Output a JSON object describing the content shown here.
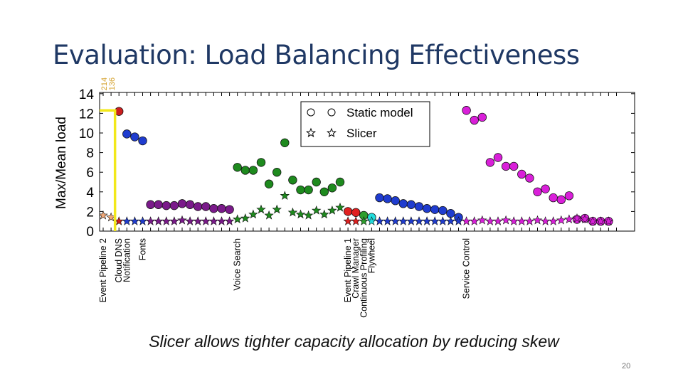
{
  "slide": {
    "title": "Evaluation: Load Balancing Effectiveness",
    "caption": "Slicer allows tighter capacity allocation by reducing skew",
    "page_number": "20"
  },
  "colors": {
    "title": "#1f3864",
    "highlight": "#f2e81a",
    "overflow_label": "#d4a02a",
    "axis": "#000000"
  },
  "chart_data": {
    "type": "scatter",
    "ylabel": "Max/Mean load",
    "ylim": [
      0,
      14
    ],
    "yticks": [
      0,
      2,
      4,
      6,
      8,
      10,
      12,
      14
    ],
    "xlim": [
      0,
      65
    ],
    "overflow_labels": [
      "214",
      "136"
    ],
    "highlight_line": {
      "x": 1.5,
      "y": 12.3
    },
    "legend": [
      {
        "marker": "circle",
        "label": "Static model"
      },
      {
        "marker": "star",
        "label": "Slicer"
      }
    ],
    "categories": [
      {
        "label": "Event Pipeline 2",
        "x": 0
      },
      {
        "label": "Cloud DNS",
        "x": 2
      },
      {
        "label": "Notification",
        "x": 3
      },
      {
        "label": "Fonts",
        "x": 5
      },
      {
        "label": "Voice Search",
        "x": 17
      },
      {
        "label": "Event Pipeline 1",
        "x": 31
      },
      {
        "label": "Crawl Manager",
        "x": 32
      },
      {
        "label": "Continuous Profiling",
        "x": 33
      },
      {
        "label": "Flywheel",
        "x": 34
      },
      {
        "label": "Service Control",
        "x": 46
      }
    ],
    "series": [
      {
        "name": "Event Pipeline 2",
        "color": "#f0a878",
        "static_x": [],
        "static_y": [],
        "slicer_x": [
          0,
          1
        ],
        "slicer_y": [
          1.6,
          1.4
        ]
      },
      {
        "name": "Cloud DNS",
        "color": "#cc1f1f",
        "static_x": [
          2
        ],
        "static_y": [
          12.2
        ],
        "slicer_x": [
          2
        ],
        "slicer_y": [
          1.0
        ]
      },
      {
        "name": "Notification",
        "color": "#1f3ccf",
        "static_x": [
          3,
          4,
          5
        ],
        "static_y": [
          9.9,
          9.6,
          9.2
        ],
        "slicer_x": [
          3,
          4,
          5
        ],
        "slicer_y": [
          1.0,
          1.0,
          1.0
        ]
      },
      {
        "name": "Fonts",
        "color": "#7a1a8a",
        "static_x": [
          6,
          7,
          8,
          9,
          10,
          11,
          12,
          13,
          14,
          15,
          16
        ],
        "static_y": [
          2.7,
          2.7,
          2.6,
          2.6,
          2.8,
          2.7,
          2.5,
          2.5,
          2.3,
          2.3,
          2.2
        ],
        "slicer_x": [
          6,
          7,
          8,
          9,
          10,
          11,
          12,
          13,
          14,
          15,
          16
        ],
        "slicer_y": [
          1.0,
          1.0,
          1.0,
          1.0,
          1.1,
          1.0,
          1.0,
          1.0,
          1.0,
          1.0,
          1.0
        ]
      },
      {
        "name": "Voice Search",
        "color": "#1e8a1e",
        "static_x": [
          17,
          18,
          19,
          20,
          21,
          22,
          23,
          24,
          25,
          26,
          27,
          28,
          29,
          30
        ],
        "static_y": [
          6.5,
          6.2,
          6.2,
          7.0,
          4.8,
          6.0,
          9.0,
          5.2,
          4.2,
          4.2,
          5.0,
          4.0,
          4.4,
          5.0
        ],
        "slicer_x": [
          17,
          18,
          19,
          20,
          21,
          22,
          23,
          24,
          25,
          26,
          27,
          28,
          29,
          30
        ],
        "slicer_y": [
          1.2,
          1.3,
          1.7,
          2.2,
          1.6,
          2.2,
          3.6,
          1.9,
          1.7,
          1.6,
          2.1,
          1.7,
          2.1,
          2.4
        ]
      },
      {
        "name": "Event Pipeline 1",
        "color": "#e02020",
        "static_x": [
          31,
          32
        ],
        "static_y": [
          2.0,
          1.9
        ],
        "slicer_x": [
          31,
          32
        ],
        "slicer_y": [
          1.0,
          1.0
        ]
      },
      {
        "name": "Crawl Manager",
        "color": "#2d9e2d",
        "static_x": [
          33
        ],
        "static_y": [
          1.6
        ],
        "slicer_x": [
          33
        ],
        "slicer_y": [
          1.0
        ]
      },
      {
        "name": "Flywheel",
        "color": "#22dddd",
        "static_x": [
          34
        ],
        "static_y": [
          1.4
        ],
        "slicer_x": [
          34
        ],
        "slicer_y": [
          1.0
        ]
      },
      {
        "name": "Continuous Profiling",
        "color": "#1f3ccf",
        "static_x": [
          35,
          36,
          37,
          38,
          39,
          40,
          41,
          42,
          43,
          44,
          45
        ],
        "static_y": [
          3.4,
          3.3,
          3.1,
          2.8,
          2.7,
          2.5,
          2.3,
          2.2,
          2.1,
          1.8,
          1.4
        ],
        "slicer_x": [
          35,
          36,
          37,
          38,
          39,
          40,
          41,
          42,
          43,
          44,
          45
        ],
        "slicer_y": [
          1.0,
          1.0,
          1.0,
          1.0,
          1.0,
          1.0,
          1.0,
          1.0,
          1.0,
          1.0,
          1.0
        ]
      },
      {
        "name": "Service Control",
        "color": "#d91fd9",
        "static_x": [
          46,
          47,
          48,
          49,
          50,
          51,
          52,
          53,
          54,
          55,
          56,
          57,
          58,
          59,
          60,
          61,
          62,
          63,
          64
        ],
        "static_y": [
          12.3,
          11.3,
          11.6,
          7.0,
          7.5,
          6.6,
          6.6,
          5.8,
          5.4,
          4.0,
          4.3,
          3.4,
          3.2,
          3.6,
          1.2,
          1.3,
          1.0,
          1.0,
          1.0
        ],
        "slicer_x": [
          46,
          47,
          48,
          49,
          50,
          51,
          52,
          53,
          54,
          55,
          56,
          57,
          58,
          59,
          60,
          61,
          62,
          63,
          64
        ],
        "slicer_y": [
          1.0,
          1.0,
          1.1,
          1.0,
          1.0,
          1.1,
          1.0,
          1.0,
          1.0,
          1.1,
          1.0,
          1.0,
          1.1,
          1.2,
          1.3,
          1.2,
          1.0,
          1.0,
          1.0
        ]
      }
    ]
  }
}
